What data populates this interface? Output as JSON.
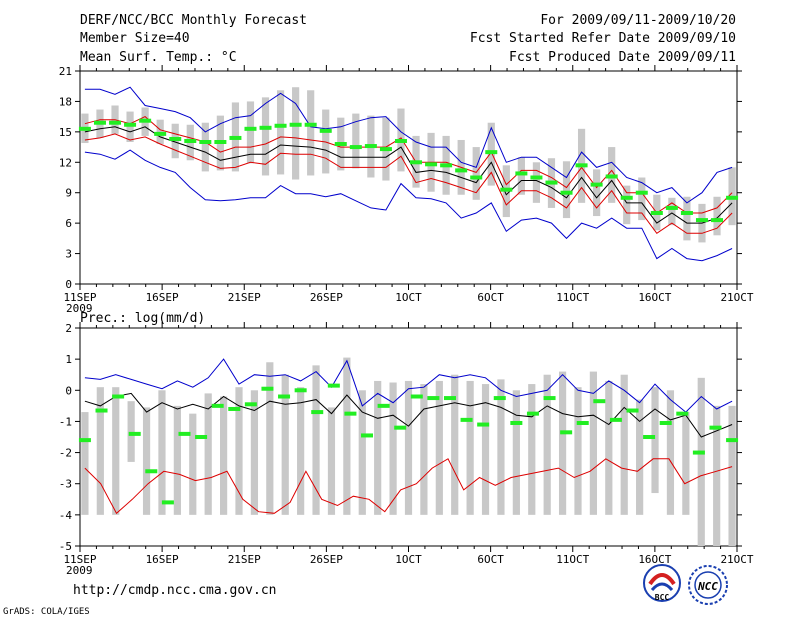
{
  "header": {
    "left_line1": "DERF/NCC/BCC Monthly Forecast",
    "left_line2": "Member Size=40",
    "left_line3": "Mean Surf. Temp.: °C",
    "right_line1": "For 2009/09/11-2009/10/20",
    "right_line2": "Fcst Started Refer Date 2009/09/10",
    "right_line3": "Fcst Produced Date 2009/09/11"
  },
  "panel2_title": "Prec.: log(mm/d)",
  "footer": {
    "url": "http://cmdp.ncc.cma.gov.cn",
    "grads": "GrADS: COLA/IGES",
    "logo_bcc": "BCC",
    "logo_ncc": "NCC"
  },
  "colors": {
    "box": "#c8c8c8",
    "median": "#22ee22",
    "mean": "#000000",
    "inner_band": "#dd0000",
    "outer_band": "#0000cc",
    "axis": "#000000"
  },
  "chart_data": [
    {
      "type": "line",
      "title": "Mean Surf. Temp.: °C",
      "description_series": [
        "ensemble mean (black)",
        "mean ± spread (red)",
        "envelope (blue)",
        "interquartile boxes (grey)",
        "median (green)"
      ],
      "x_ticks": [
        "11SEP",
        "16SEP",
        "21SEP",
        "26SEP",
        "1OCT",
        "6OCT",
        "11OCT",
        "16OCT",
        "21OCT"
      ],
      "x_sublabel": "2009",
      "xlim": [
        1,
        41
      ],
      "ylim": [
        0,
        21
      ],
      "y_ticks": [
        0,
        3,
        6,
        9,
        12,
        15,
        18,
        21
      ],
      "series": [
        {
          "name": "mean",
          "values": [
            15.0,
            15.3,
            15.5,
            15.0,
            15.5,
            14.5,
            14.0,
            13.5,
            13.0,
            12.2,
            12.5,
            12.8,
            12.8,
            13.7,
            13.6,
            13.5,
            13.2,
            12.5,
            12.5,
            12.5,
            12.5,
            13.5,
            11.0,
            11.2,
            11.0,
            10.5,
            10.0,
            12.0,
            8.8,
            10.2,
            10.2,
            9.5,
            8.5,
            10.5,
            8.5,
            10.2,
            8.0,
            8.0,
            6.0,
            7.0,
            6.0,
            6.0,
            6.5,
            8.0
          ]
        },
        {
          "name": "upper_red",
          "values": [
            15.8,
            16.2,
            16.2,
            15.8,
            16.5,
            15.2,
            14.8,
            14.4,
            14.0,
            13.0,
            13.5,
            13.5,
            13.8,
            14.5,
            14.4,
            14.2,
            14.0,
            13.5,
            13.5,
            13.5,
            13.5,
            14.4,
            12.0,
            12.0,
            12.0,
            11.5,
            11.0,
            13.0,
            9.8,
            11.2,
            11.2,
            10.5,
            9.5,
            11.5,
            9.5,
            11.2,
            9.0,
            9.0,
            7.0,
            8.0,
            7.0,
            7.0,
            7.5,
            9.0
          ]
        },
        {
          "name": "lower_red",
          "values": [
            14.2,
            14.4,
            14.8,
            14.2,
            14.5,
            13.8,
            13.2,
            12.6,
            12.0,
            11.4,
            11.5,
            12.0,
            11.8,
            12.9,
            12.8,
            12.8,
            12.4,
            11.5,
            11.5,
            11.5,
            11.5,
            12.6,
            10.0,
            10.4,
            10.0,
            9.5,
            9.0,
            11.0,
            7.8,
            9.2,
            9.2,
            8.5,
            7.5,
            9.5,
            7.5,
            9.2,
            7.0,
            7.0,
            5.0,
            6.0,
            5.0,
            5.0,
            5.5,
            7.0
          ]
        },
        {
          "name": "upper_blue",
          "values": [
            19.2,
            19.2,
            18.7,
            19.4,
            17.6,
            17.3,
            17.0,
            16.4,
            15.0,
            15.8,
            16.4,
            16.6,
            17.8,
            18.8,
            17.8,
            15.5,
            15.3,
            15.5,
            16.0,
            16.4,
            16.5,
            15.0,
            14.0,
            13.5,
            13.5,
            12.0,
            11.5,
            15.4,
            12.0,
            12.5,
            12.5,
            11.5,
            10.5,
            13.0,
            11.5,
            12.0,
            10.5,
            10.0,
            9.0,
            9.5,
            8.0,
            9.0,
            11.0,
            11.5
          ]
        },
        {
          "name": "lower_blue",
          "values": [
            13.0,
            12.8,
            12.3,
            13.2,
            12.2,
            11.5,
            11.0,
            9.5,
            8.3,
            8.2,
            8.3,
            8.5,
            8.5,
            9.7,
            8.9,
            8.9,
            8.6,
            8.9,
            8.2,
            7.5,
            7.3,
            9.9,
            8.5,
            8.4,
            8.0,
            6.5,
            7.0,
            8.0,
            5.2,
            6.3,
            6.5,
            6.0,
            4.5,
            6.0,
            5.5,
            6.5,
            5.5,
            5.5,
            2.5,
            3.5,
            2.5,
            2.3,
            2.8,
            3.5
          ]
        },
        {
          "name": "median",
          "values": [
            15.3,
            15.9,
            15.9,
            15.7,
            16.1,
            14.8,
            14.3,
            14.1,
            14.0,
            14.0,
            14.4,
            15.3,
            15.4,
            15.6,
            15.7,
            15.7,
            15.1,
            13.8,
            13.5,
            13.6,
            13.3,
            14.1,
            12.0,
            11.8,
            11.7,
            11.2,
            10.5,
            13.0,
            9.3,
            10.9,
            10.5,
            10.0,
            9.0,
            11.7,
            9.8,
            10.6,
            8.5,
            9.0,
            7.0,
            7.5,
            7.0,
            6.3,
            6.3,
            8.5
          ]
        },
        {
          "name": "box_high",
          "values": [
            16.8,
            17.2,
            17.6,
            17.0,
            17.4,
            16.2,
            15.8,
            15.7,
            15.9,
            16.6,
            17.9,
            18.0,
            18.4,
            19.1,
            19.4,
            19.1,
            17.2,
            16.4,
            16.8,
            16.6,
            16.4,
            17.3,
            14.6,
            14.9,
            14.6,
            14.2,
            13.5,
            15.9,
            11.7,
            12.5,
            12.0,
            12.4,
            12.1,
            15.3,
            11.3,
            13.5,
            9.7,
            10.5,
            8.8,
            8.5,
            8.6,
            7.9,
            8.6,
            11.5
          ]
        },
        {
          "name": "box_low",
          "values": [
            13.9,
            14.4,
            14.8,
            14.0,
            14.6,
            13.8,
            12.4,
            12.2,
            11.1,
            11.2,
            11.1,
            11.9,
            10.7,
            10.8,
            10.3,
            10.7,
            10.9,
            11.2,
            11.4,
            10.5,
            10.2,
            11.1,
            9.5,
            9.1,
            8.8,
            8.8,
            8.3,
            9.7,
            6.6,
            8.8,
            8.0,
            7.5,
            6.5,
            8.0,
            6.7,
            8.0,
            5.9,
            6.3,
            5.3,
            5.8,
            4.3,
            4.1,
            4.8,
            5.8
          ]
        }
      ]
    },
    {
      "type": "line",
      "title": "Prec.: log(mm/d)",
      "x_ticks": [
        "11SEP",
        "16SEP",
        "21SEP",
        "26SEP",
        "1OCT",
        "6OCT",
        "11OCT",
        "16OCT",
        "21OCT"
      ],
      "x_sublabel": "2009",
      "xlim": [
        1,
        41
      ],
      "ylim": [
        -5,
        2
      ],
      "y_ticks": [
        -5,
        -4,
        -3,
        -2,
        -1,
        0,
        1,
        2
      ],
      "series": [
        {
          "name": "mean",
          "values": [
            -0.35,
            -0.5,
            -0.2,
            -0.1,
            -0.7,
            -0.4,
            -0.6,
            -0.45,
            -0.6,
            -0.2,
            -0.5,
            -0.65,
            -0.35,
            -0.45,
            -0.4,
            -0.3,
            -0.75,
            -0.15,
            -0.7,
            -0.9,
            -0.8,
            -1.15,
            -0.6,
            -0.5,
            -0.4,
            -0.5,
            -0.4,
            -0.55,
            -0.8,
            -0.85,
            -0.5,
            -0.75,
            -0.85,
            -0.8,
            -1.1,
            -0.55,
            -1.0,
            -0.6,
            -0.95,
            -0.8,
            -1.5,
            -1.3,
            -1.1
          ]
        },
        {
          "name": "upper_blue",
          "values": [
            0.4,
            0.35,
            0.5,
            0.35,
            0.2,
            0.05,
            0.3,
            0.1,
            0.4,
            1.0,
            0.2,
            0.5,
            0.45,
            0.5,
            0.3,
            0.6,
            0.1,
            0.95,
            -0.5,
            -0.1,
            -0.4,
            0.05,
            0.1,
            0.5,
            0.4,
            0.5,
            0.4,
            0.0,
            -0.2,
            -0.1,
            0.0,
            0.5,
            0.0,
            -0.1,
            0.3,
            0.0,
            -0.4,
            0.2,
            -0.3,
            -0.7,
            -0.2,
            -0.6,
            -0.35
          ]
        },
        {
          "name": "lower_red",
          "values": [
            -2.5,
            -3.0,
            -3.95,
            -3.5,
            -3.0,
            -2.6,
            -2.7,
            -2.9,
            -2.8,
            -2.6,
            -3.5,
            -3.9,
            -3.95,
            -3.6,
            -2.6,
            -3.5,
            -3.7,
            -3.4,
            -3.5,
            -3.9,
            -3.2,
            -3.0,
            -2.5,
            -2.2,
            -3.2,
            -2.8,
            -3.05,
            -2.8,
            -2.7,
            -2.6,
            -2.5,
            -2.8,
            -2.6,
            -2.2,
            -2.5,
            -2.6,
            -2.2,
            -2.2,
            -3.0,
            -2.75,
            -2.6,
            -2.45
          ]
        },
        {
          "name": "median",
          "values": [
            -1.6,
            -0.65,
            -0.2,
            -1.4,
            -2.6,
            -3.6,
            -1.4,
            -1.5,
            -0.5,
            -0.6,
            -0.45,
            0.05,
            -0.2,
            0.0,
            -0.7,
            0.15,
            -0.75,
            -1.45,
            -0.5,
            -1.2,
            -0.2,
            -0.25,
            -0.25,
            -0.95,
            -1.1,
            -0.25,
            -1.05,
            -0.75,
            -0.25,
            -1.35,
            -1.05,
            -0.35,
            -0.95,
            -0.65,
            -1.5,
            -1.05,
            -0.75,
            -2.0,
            -1.2,
            -1.6
          ]
        },
        {
          "name": "box_high",
          "values": [
            -0.7,
            0.1,
            0.1,
            -0.35,
            -0.55,
            0.0,
            -0.5,
            -0.75,
            -0.1,
            -0.2,
            0.1,
            0.0,
            0.9,
            0.5,
            0.1,
            0.8,
            -0.55,
            1.05,
            0.0,
            0.3,
            0.25,
            0.3,
            0.2,
            0.3,
            0.5,
            0.3,
            0.2,
            0.35,
            0.0,
            0.2,
            0.5,
            0.6,
            0.1,
            0.6,
            0.3,
            0.5,
            -0.3,
            0.1,
            0.0,
            -0.7,
            0.4,
            -0.5,
            -0.5
          ]
        },
        {
          "name": "box_low",
          "values": [
            -4.0,
            -4.0,
            -4.0,
            -2.3,
            -4.0,
            -4.0,
            -4.0,
            -4.0,
            -4.0,
            -4.0,
            -4.0,
            -4.0,
            -4.0,
            -4.0,
            -4.0,
            -4.0,
            -4.0,
            -4.0,
            -4.0,
            -4.0,
            -4.0,
            -4.0,
            -4.0,
            -4.0,
            -4.0,
            -4.0,
            -4.0,
            -4.0,
            -4.0,
            -4.0,
            -4.0,
            -4.0,
            -4.0,
            -4.0,
            -4.0,
            -4.0,
            -4.0,
            -3.3,
            -4.0,
            -4.0
          ]
        }
      ]
    }
  ]
}
